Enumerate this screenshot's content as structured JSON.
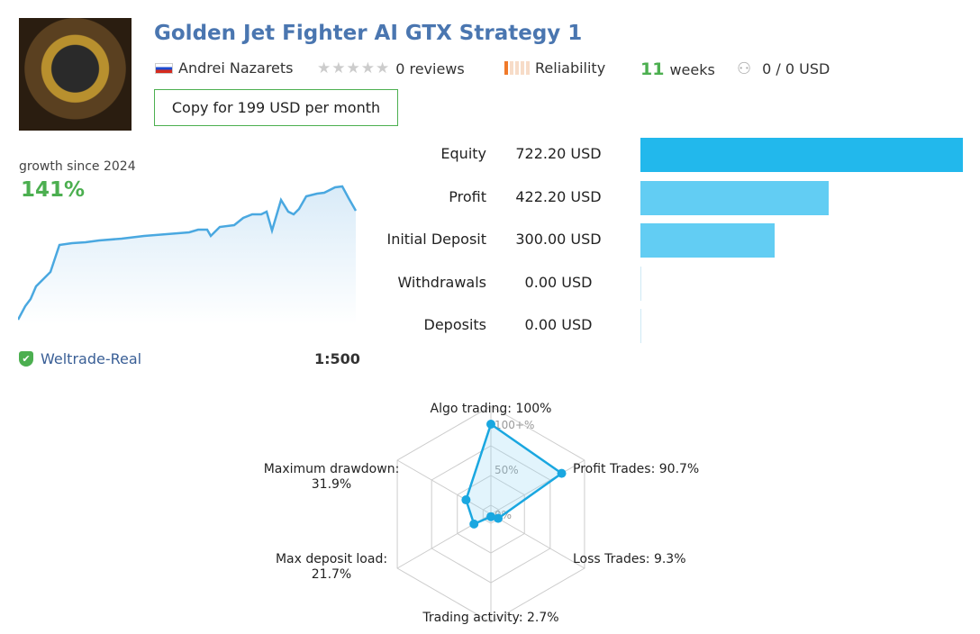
{
  "header": {
    "title": "Golden Jet Fighter AI GTX Strategy 1",
    "author": "Andrei Nazarets",
    "reviews": "0 reviews",
    "reliability": "Reliability",
    "weeks_num": "11",
    "weeks_label": "weeks",
    "subscribers": "0 / 0 USD",
    "copy_button": "Copy for 199 USD per month"
  },
  "growth": {
    "label": "growth since 2024",
    "value": "141%",
    "broker": "Weltrade-Real",
    "leverage": "1:500"
  },
  "stats": [
    {
      "label": "Equity",
      "value": "722.20 USD",
      "amount": 722.2,
      "color": "#22b8ec"
    },
    {
      "label": "Profit",
      "value": "422.20 USD",
      "amount": 422.2,
      "color": "#62cdf3"
    },
    {
      "label": "Initial Deposit",
      "value": "300.00 USD",
      "amount": 300,
      "color": "#62cdf3"
    },
    {
      "label": "Withdrawals",
      "value": "0.00 USD",
      "amount": 0,
      "color": "#62cdf3"
    },
    {
      "label": "Deposits",
      "value": "0.00 USD",
      "amount": 0,
      "color": "#62cdf3"
    }
  ],
  "chart_data": {
    "type": "radar",
    "axes": [
      {
        "label": "Algo trading: 100%",
        "value": 100
      },
      {
        "label": "Profit Trades: 90.7%",
        "value": 90.7
      },
      {
        "label": "Loss Trades: 9.3%",
        "value": 9.3
      },
      {
        "label": "Trading activity: 2.7%",
        "value": 2.7
      },
      {
        "label": "Max deposit load: 21.7%",
        "value": 21.7
      },
      {
        "label": "Maximum drawdown: 31.9%",
        "value": 31.9
      }
    ],
    "ring_labels": [
      "100+%",
      "50%",
      "0%"
    ],
    "color": "#1aa7e0"
  }
}
